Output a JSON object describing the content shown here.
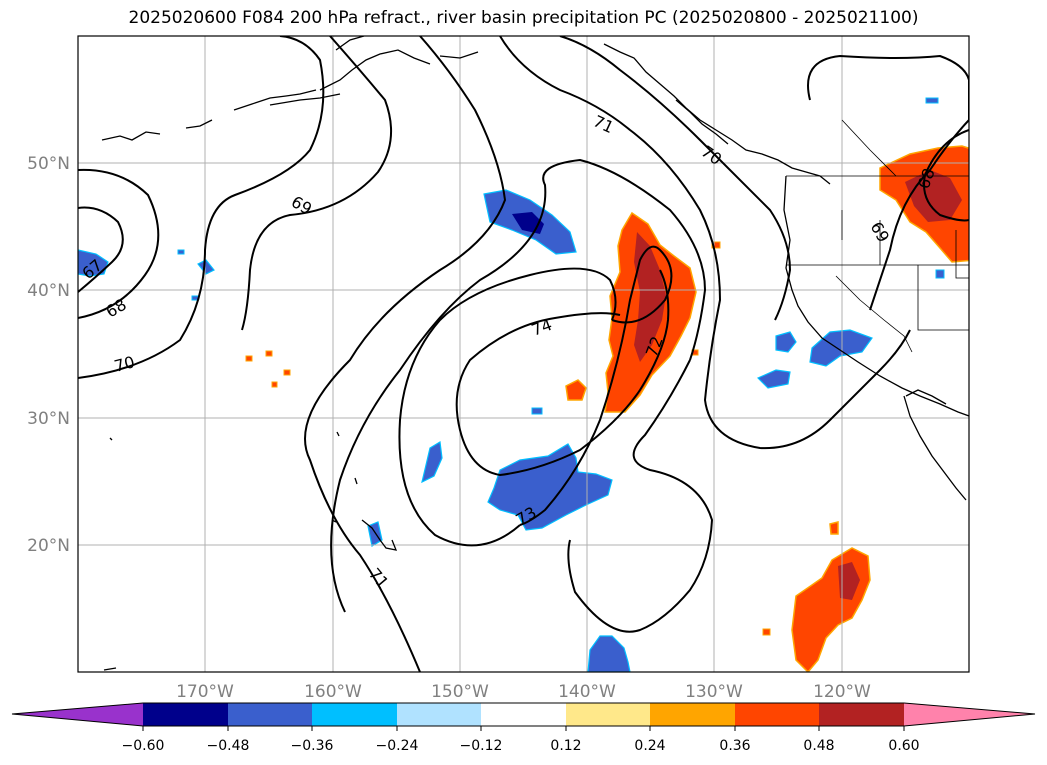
{
  "title": "2025020600 F084 200 hPa refract., river basin precipitation PC (2025020800 - 2025021100)",
  "map": {
    "projection": "equidistant-cylindrical",
    "lon_range": [
      -180,
      -110
    ],
    "lat_range": [
      10,
      60
    ],
    "gridlines": true,
    "lat_ticks": [
      {
        "lat": 50,
        "label": "50°N"
      },
      {
        "lat": 40,
        "label": "40°N"
      },
      {
        "lat": 30,
        "label": "30°N"
      },
      {
        "lat": 20,
        "label": "20°N"
      }
    ],
    "lon_ticks": [
      {
        "lon": -170,
        "label": "170°W"
      },
      {
        "lon": -160,
        "label": "160°W"
      },
      {
        "lon": -150,
        "label": "150°W"
      },
      {
        "lon": -140,
        "label": "140°W"
      },
      {
        "lon": -130,
        "label": "130°W"
      },
      {
        "lon": -120,
        "label": "120°W"
      }
    ],
    "contour_labels": [
      "67",
      "68",
      "69",
      "70",
      "71",
      "72",
      "73",
      "74",
      "69",
      "68",
      "70",
      "71"
    ],
    "colors": {
      "strong_negative": "#00008b",
      "negative": "#3a5fcd",
      "weak_negative": "#00bfff",
      "positive": "#ff4500",
      "strong_positive": "#b22222",
      "edge_positive": "#ffa500",
      "contour": "#000000",
      "coast": "#000000",
      "grid": "#b0b0b0"
    }
  },
  "colorbar": {
    "extend": "both",
    "colors": [
      "#9932cc",
      "#00008b",
      "#3a5fcd",
      "#00bfff",
      "#b0e2ff",
      "#ffffff",
      "#ffe88a",
      "#ffa500",
      "#ff4500",
      "#b22222",
      "#ff82ab"
    ],
    "tick_labels": [
      "−0.60",
      "−0.48",
      "−0.36",
      "−0.24",
      "−0.12",
      "0.12",
      "0.24",
      "0.36",
      "0.48",
      "0.60"
    ]
  }
}
